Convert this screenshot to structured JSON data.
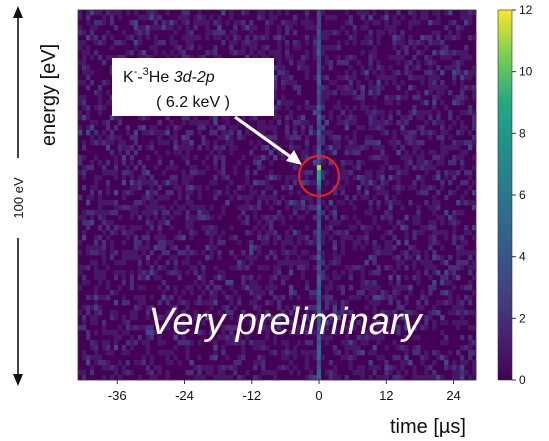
{
  "chart_data": {
    "type": "heatmap",
    "x_label": "time [µs]",
    "y_label": "energy [eV]",
    "x_ticks": [
      -36,
      -24,
      -12,
      0,
      12,
      24
    ],
    "x_range": [
      -43,
      28
    ],
    "y_scale_label": "100 eV",
    "colorbar": {
      "min": 0,
      "max": 12,
      "ticks": [
        0,
        2,
        4,
        6,
        8,
        10,
        12
      ],
      "colormap": "viridis"
    },
    "annotation": {
      "line1_prefix": "K",
      "line1_sup1": "-",
      "line1_mid": "-",
      "line1_sup2": "3",
      "line1_element": "He ",
      "line1_transition": "3d-2p",
      "line2": "( 6.2 keV )",
      "peak_time": 0
    },
    "watermark": "Very preliminary",
    "peak_column_time": 0
  }
}
